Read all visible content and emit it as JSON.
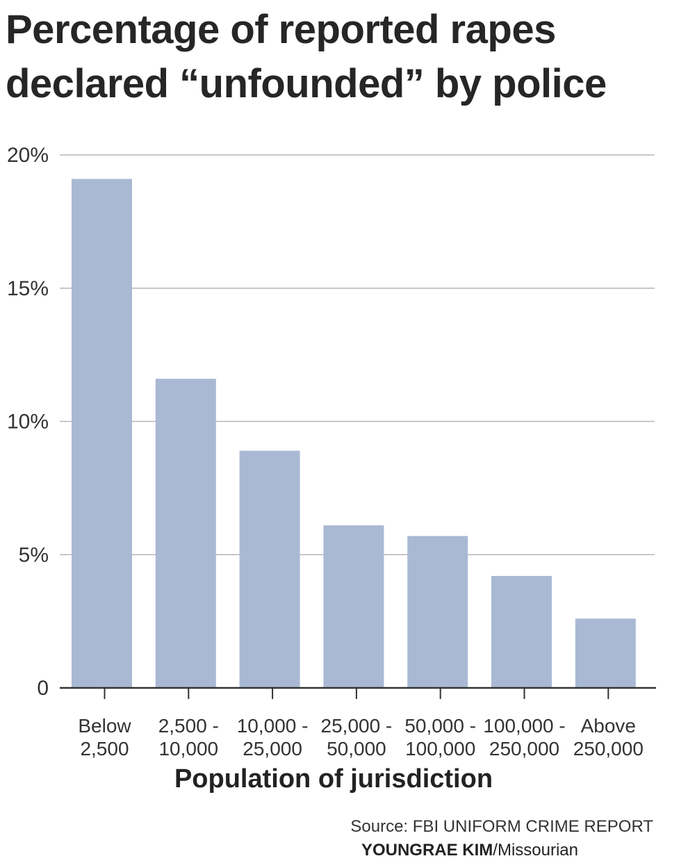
{
  "title": {
    "line1": "Percentage of reported rapes",
    "line2": "declared “unfounded” by police"
  },
  "chart_data": {
    "type": "bar",
    "title": "Percentage of reported rapes declared “unfounded” by police",
    "xlabel": "Population of jurisdiction",
    "ylabel": "",
    "categories": [
      [
        "Below",
        "2,500"
      ],
      [
        "2,500 -",
        "10,000"
      ],
      [
        "10,000 -",
        "25,000"
      ],
      [
        "25,000 -",
        "50,000"
      ],
      [
        "50,000 -",
        "100,000"
      ],
      [
        "100,000 -",
        "250,000"
      ],
      [
        "Above",
        "250,000"
      ]
    ],
    "values": [
      19.1,
      11.6,
      8.9,
      6.1,
      5.7,
      4.2,
      2.6
    ],
    "ylim": [
      0,
      20
    ],
    "yticks": [
      0,
      5,
      10,
      15,
      20
    ],
    "ytick_labels": [
      "0",
      "5%",
      "10%",
      "15%",
      "20%"
    ],
    "grid": true,
    "bar_color": "#a9b9d4",
    "grid_color": "#b5b5b5",
    "axis_color": "#333333"
  },
  "footer": {
    "source": "Source: FBI UNIFORM CRIME REPORT",
    "credit_name": "YOUNGRAE KIM",
    "credit_org": "/Missourian"
  }
}
